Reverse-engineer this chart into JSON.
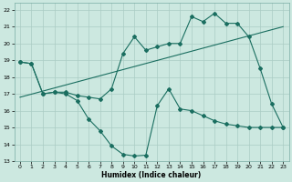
{
  "xlabel": "Humidex (Indice chaleur)",
  "xlim": [
    -0.5,
    23.5
  ],
  "ylim": [
    13,
    22.4
  ],
  "xticks": [
    0,
    1,
    2,
    3,
    4,
    5,
    6,
    7,
    8,
    9,
    10,
    11,
    12,
    13,
    14,
    15,
    16,
    17,
    18,
    19,
    20,
    21,
    22,
    23
  ],
  "yticks": [
    13,
    14,
    15,
    16,
    17,
    18,
    19,
    20,
    21,
    22
  ],
  "bg_color": "#cce8e0",
  "line_color": "#1a6e60",
  "grid_color": "#aaccc4",
  "line1_x": [
    0,
    1,
    2,
    3,
    4,
    5,
    6,
    7,
    8,
    9,
    10,
    11,
    12,
    13,
    14,
    15,
    16,
    17,
    18,
    19,
    20,
    21,
    22,
    23
  ],
  "line1_y": [
    18.9,
    18.8,
    17.0,
    17.1,
    17.0,
    16.6,
    15.5,
    14.8,
    13.9,
    13.4,
    13.3,
    13.35,
    16.3,
    17.3,
    16.1,
    16.0,
    15.7,
    15.4,
    15.2,
    15.1,
    15.0,
    15.0,
    15.0,
    15.0
  ],
  "line2_x": [
    0,
    1,
    2,
    3,
    4,
    5,
    6,
    7,
    8,
    9,
    10,
    11,
    12,
    13,
    14,
    15,
    16,
    17,
    18,
    19,
    20,
    21,
    22,
    23
  ],
  "line2_y": [
    18.9,
    18.8,
    17.0,
    17.1,
    17.1,
    16.9,
    16.8,
    16.7,
    17.3,
    19.4,
    20.4,
    19.6,
    19.8,
    20.0,
    20.0,
    21.6,
    21.3,
    21.8,
    21.2,
    21.2,
    20.4,
    18.5,
    16.4,
    15.0
  ],
  "line3_x": [
    0,
    23
  ],
  "line3_y": [
    16.8,
    21.0
  ],
  "markersize": 2.0,
  "linewidth": 0.8,
  "tick_fontsize": 4.5,
  "xlabel_fontsize": 5.5
}
